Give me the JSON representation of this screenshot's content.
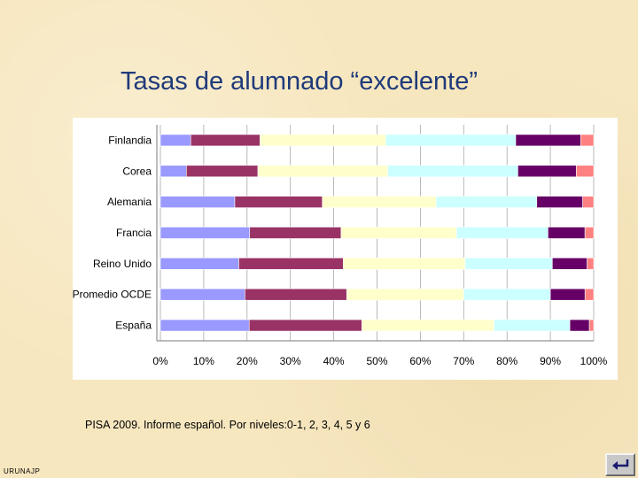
{
  "slide": {
    "title": "Tasas de alumnado “excelente”",
    "caption": "PISA 2009. Informe español. Por niveles:0-1, 2, 3, 4, 5 y 6",
    "footer": "URUNAJP",
    "nav_icon": "return-arrow-icon"
  },
  "chart_data": {
    "type": "bar",
    "orientation": "horizontal",
    "stacked": "percent",
    "categories": [
      "Finlandia",
      "Corea",
      "Alemania",
      "Francia",
      "Reino Unido",
      "Promedio OCDE",
      "España"
    ],
    "x_tick_labels": [
      "0%",
      "10%",
      "20%",
      "30%",
      "40%",
      "50%",
      "60%",
      "70%",
      "80%",
      "90%",
      "100%"
    ],
    "xlim": [
      0,
      100
    ],
    "grid": true,
    "legend": "none",
    "series": [
      {
        "color": "#9999ff",
        "values": [
          7,
          6,
          17,
          20.5,
          18,
          19.5,
          20.5
        ]
      },
      {
        "color": "#993366",
        "values": [
          16,
          16.5,
          20,
          21,
          24,
          23.5,
          26
        ]
      },
      {
        "color": "#ffffcc",
        "values": [
          29,
          30,
          26,
          26.5,
          28,
          27,
          30.5
        ]
      },
      {
        "color": "#ccffff",
        "values": [
          30,
          30,
          23,
          21,
          20,
          20,
          17.5
        ]
      },
      {
        "color": "#660066",
        "values": [
          15,
          13.5,
          10.5,
          8.5,
          8,
          8,
          4.5
        ]
      },
      {
        "color": "#ff8080",
        "values": [
          3,
          4,
          2.5,
          2,
          1.5,
          2,
          1
        ]
      }
    ]
  }
}
